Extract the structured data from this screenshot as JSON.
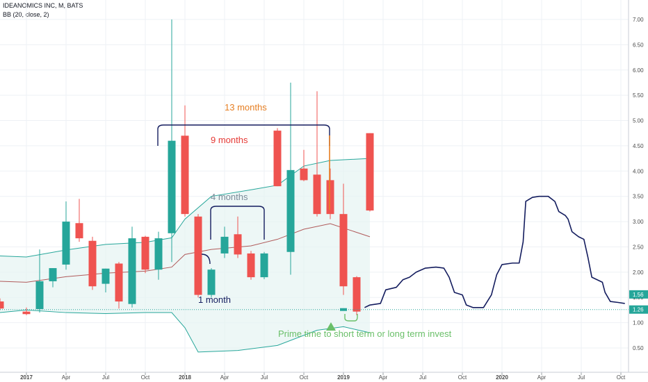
{
  "header": {
    "title": "IDEANOMICS INC, M, BATS",
    "indicator": "BB (20, close, 2)"
  },
  "colors": {
    "up": "#26a69a",
    "down": "#ef5350",
    "bb_band": "#26a69a",
    "bb_basis": "#b05a5a",
    "bb_fill": "#e6f4f2",
    "drawing": "#131c5e",
    "label_13": "#e67e22",
    "label_9": "#e53935",
    "label_4": "#7b8a99",
    "label_1": "#131c5e",
    "label_prime": "#6abf69",
    "arrow": "#6abf69",
    "price_tag": "#26a69a"
  },
  "chart_data": {
    "type": "candlestick",
    "symbol": "IDEANOMICS INC",
    "interval": "M",
    "exchange": "BATS",
    "ylim": [
      0.3,
      7.3
    ],
    "y_ticks": [
      "0.50",
      "1.00",
      "1.50",
      "2.00",
      "2.50",
      "3.00",
      "3.50",
      "4.00",
      "4.50",
      "5.00",
      "5.50",
      "6.00",
      "6.50",
      "7.00"
    ],
    "x_ticks": [
      "2017",
      "Apr",
      "Jul",
      "Oct",
      "2018",
      "Apr",
      "Jul",
      "Oct",
      "2019",
      "Apr",
      "Jul",
      "Oct",
      "2020",
      "Apr",
      "Jul",
      "Oct"
    ],
    "x_tick_months": [
      0,
      3,
      6,
      9,
      12,
      15,
      18,
      21,
      24,
      27,
      30,
      33,
      36,
      39,
      42,
      45
    ],
    "candles": [
      {
        "m": -2,
        "o": 1.42,
        "h": 1.48,
        "l": 1.25,
        "c": 1.28
      },
      {
        "m": 0,
        "o": 1.22,
        "h": 1.3,
        "l": 1.15,
        "c": 1.17
      },
      {
        "m": 1,
        "o": 1.27,
        "h": 2.45,
        "l": 1.2,
        "c": 1.82
      },
      {
        "m": 2,
        "o": 1.82,
        "h": 2.08,
        "l": 1.7,
        "c": 2.08
      },
      {
        "m": 3,
        "o": 2.15,
        "h": 3.4,
        "l": 2.05,
        "c": 3.0
      },
      {
        "m": 4,
        "o": 2.97,
        "h": 3.45,
        "l": 2.6,
        "c": 2.67
      },
      {
        "m": 5,
        "o": 2.62,
        "h": 2.7,
        "l": 1.65,
        "c": 1.72
      },
      {
        "m": 6,
        "o": 1.77,
        "h": 2.07,
        "l": 1.6,
        "c": 2.07
      },
      {
        "m": 7,
        "o": 2.17,
        "h": 2.2,
        "l": 1.28,
        "c": 1.42
      },
      {
        "m": 8,
        "o": 1.37,
        "h": 2.9,
        "l": 1.3,
        "c": 2.67
      },
      {
        "m": 9,
        "o": 2.7,
        "h": 2.72,
        "l": 1.98,
        "c": 2.05
      },
      {
        "m": 10,
        "o": 2.05,
        "h": 2.8,
        "l": 1.85,
        "c": 2.67
      },
      {
        "m": 11,
        "o": 2.77,
        "h": 7.0,
        "l": 2.2,
        "c": 4.6
      },
      {
        "m": 12,
        "o": 4.7,
        "h": 5.3,
        "l": 3.1,
        "c": 3.15
      },
      {
        "m": 13,
        "o": 3.1,
        "h": 3.15,
        "l": 1.5,
        "c": 1.55
      },
      {
        "m": 14,
        "o": 1.55,
        "h": 2.08,
        "l": 1.5,
        "c": 2.05
      },
      {
        "m": 15,
        "o": 2.37,
        "h": 2.9,
        "l": 2.28,
        "c": 2.7
      },
      {
        "m": 16,
        "o": 2.75,
        "h": 3.1,
        "l": 2.28,
        "c": 2.35
      },
      {
        "m": 17,
        "o": 2.37,
        "h": 2.42,
        "l": 1.85,
        "c": 1.9
      },
      {
        "m": 18,
        "o": 1.9,
        "h": 2.4,
        "l": 1.86,
        "c": 2.37
      },
      {
        "m": 19,
        "o": 4.8,
        "h": 4.85,
        "l": 3.7,
        "c": 3.7
      },
      {
        "m": 20,
        "o": 2.4,
        "h": 5.75,
        "l": 1.95,
        "c": 4.02
      },
      {
        "m": 21,
        "o": 4.05,
        "h": 4.42,
        "l": 3.8,
        "c": 3.82
      },
      {
        "m": 22,
        "o": 3.93,
        "h": 5.58,
        "l": 3.1,
        "c": 3.15
      },
      {
        "m": 23,
        "o": 3.82,
        "h": 4.05,
        "l": 3.05,
        "c": 3.15
      },
      {
        "m": 24,
        "o": 3.15,
        "h": 3.75,
        "l": 1.55,
        "c": 1.72
      },
      {
        "m": 25,
        "o": 1.9,
        "h": 1.92,
        "l": 1.15,
        "c": 1.22
      },
      {
        "m": 26,
        "o": 4.75,
        "h": 4.75,
        "l": 3.2,
        "c": 3.22
      }
    ],
    "bb_upper": [
      [
        -2,
        2.32
      ],
      [
        0,
        2.3
      ],
      [
        3,
        2.44
      ],
      [
        6,
        2.55
      ],
      [
        9,
        2.59
      ],
      [
        11,
        2.68
      ],
      [
        12,
        3.05
      ],
      [
        14,
        3.5
      ],
      [
        17,
        3.63
      ],
      [
        19,
        3.72
      ],
      [
        21,
        4.1
      ],
      [
        23,
        4.21
      ],
      [
        26,
        4.25
      ]
    ],
    "bb_basis": [
      [
        -2,
        1.82
      ],
      [
        0,
        1.8
      ],
      [
        3,
        1.91
      ],
      [
        6,
        1.98
      ],
      [
        9,
        2.02
      ],
      [
        11,
        2.1
      ],
      [
        12,
        2.35
      ],
      [
        14,
        2.45
      ],
      [
        17,
        2.52
      ],
      [
        19,
        2.65
      ],
      [
        21,
        2.85
      ],
      [
        23,
        2.96
      ],
      [
        26,
        2.7
      ]
    ],
    "bb_lower": [
      [
        -2,
        1.2
      ],
      [
        0,
        1.25
      ],
      [
        3,
        1.2
      ],
      [
        6,
        1.18
      ],
      [
        9,
        1.2
      ],
      [
        11,
        1.2
      ],
      [
        12,
        0.9
      ],
      [
        13,
        0.42
      ],
      [
        16,
        0.45
      ],
      [
        19,
        0.55
      ],
      [
        22,
        0.85
      ],
      [
        24,
        0.92
      ],
      [
        26,
        0.8
      ]
    ],
    "drawing_path": [
      [
        25.6,
        1.3
      ],
      [
        26,
        1.35
      ],
      [
        26.8,
        1.38
      ],
      [
        27.2,
        1.65
      ],
      [
        28,
        1.7
      ],
      [
        28.5,
        1.85
      ],
      [
        29,
        1.9
      ],
      [
        29.5,
        2.0
      ],
      [
        30.2,
        2.08
      ],
      [
        31,
        2.1
      ],
      [
        31.6,
        2.08
      ],
      [
        32,
        1.9
      ],
      [
        32.4,
        1.6
      ],
      [
        33,
        1.55
      ],
      [
        33.3,
        1.35
      ],
      [
        33.8,
        1.3
      ],
      [
        34.6,
        1.3
      ],
      [
        35.2,
        1.55
      ],
      [
        35.6,
        1.95
      ],
      [
        36,
        2.15
      ],
      [
        36.8,
        2.18
      ],
      [
        37.3,
        2.18
      ],
      [
        37.6,
        2.6
      ],
      [
        37.8,
        3.4
      ],
      [
        38.3,
        3.48
      ],
      [
        38.8,
        3.5
      ],
      [
        39.5,
        3.5
      ],
      [
        40,
        3.4
      ],
      [
        40.3,
        3.2
      ],
      [
        40.8,
        3.12
      ],
      [
        41,
        3.05
      ],
      [
        41.3,
        2.8
      ],
      [
        41.8,
        2.7
      ],
      [
        42.2,
        2.65
      ],
      [
        42.5,
        2.3
      ],
      [
        42.8,
        1.9
      ],
      [
        43.2,
        1.85
      ],
      [
        43.6,
        1.8
      ],
      [
        43.8,
        1.6
      ],
      [
        44.2,
        1.42
      ],
      [
        44.8,
        1.4
      ],
      [
        45.3,
        1.38
      ]
    ],
    "current_price": 1.26,
    "price_tags": [
      {
        "value": 1.56,
        "label": "1.56"
      },
      {
        "value": 1.26,
        "label": "1.26"
      }
    ],
    "annotations": [
      {
        "id": "label_13",
        "text": "13 months"
      },
      {
        "id": "label_9",
        "text": "9 months"
      },
      {
        "id": "label_4",
        "text": "4 months"
      },
      {
        "id": "label_1",
        "text": "1 month"
      },
      {
        "id": "label_prime",
        "text": "Prime time to short term or long term invest"
      }
    ]
  }
}
